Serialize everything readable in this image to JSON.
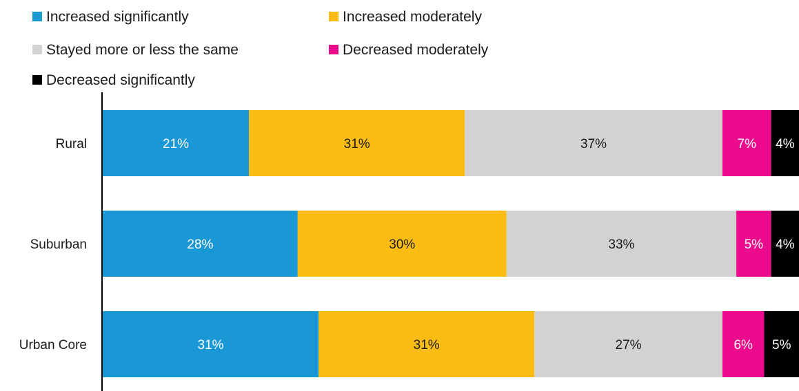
{
  "chart_data": {
    "type": "bar",
    "orientation": "horizontal",
    "stacked": true,
    "categories": [
      "Rural",
      "Suburban",
      "Urban Core"
    ],
    "series": [
      {
        "name": "Increased significantly",
        "color": "#1a98d5",
        "label_color": "#ffffff",
        "values": [
          21,
          28,
          31
        ],
        "labels": [
          "21%",
          "28%",
          "31%"
        ]
      },
      {
        "name": "Increased moderately",
        "color": "#fbbd13",
        "label_color": "#1a1a1a",
        "values": [
          31,
          30,
          31
        ],
        "labels": [
          "31%",
          "30%",
          "31%"
        ]
      },
      {
        "name": "Stayed more or less the same",
        "color": "#d2d2d2",
        "label_color": "#1a1a1a",
        "values": [
          37,
          33,
          27
        ],
        "labels": [
          "37%",
          "33%",
          "27%"
        ]
      },
      {
        "name": "Decreased moderately",
        "color": "#ec0b8c",
        "label_color": "#ffffff",
        "values": [
          7,
          5,
          6
        ],
        "labels": [
          "7%",
          "5%",
          "6%"
        ]
      },
      {
        "name": "Decreased significantly",
        "color": "#000000",
        "label_color": "#ffffff",
        "values": [
          4,
          4,
          5
        ],
        "labels": [
          "4%",
          "4%",
          "5%"
        ]
      }
    ],
    "legend_position": "top-left",
    "grid": false
  }
}
